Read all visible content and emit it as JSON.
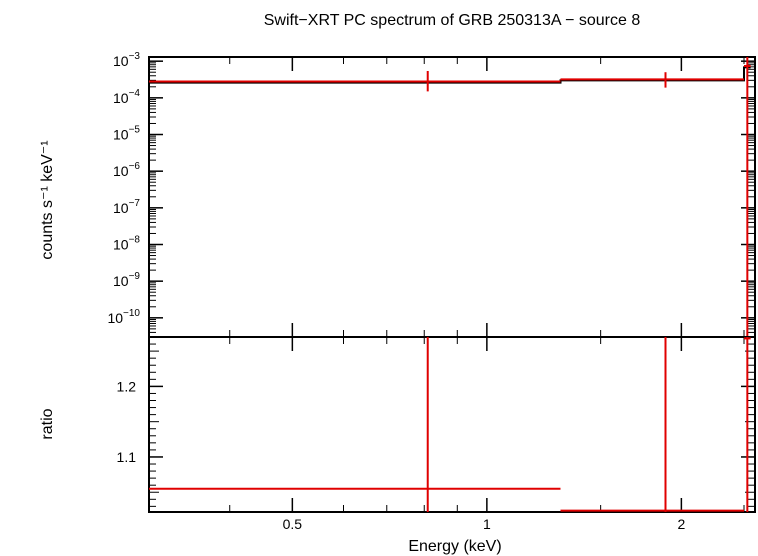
{
  "chart_data": [
    {
      "type": "line",
      "title": "Swift−XRT PC spectrum of GRB 250313A − source 8",
      "ylabel": "counts s⁻¹ keV⁻¹",
      "y_scale": "log",
      "ylim": [
        3e-11,
        0.0013
      ],
      "x_scale": "log",
      "xlim": [
        0.3,
        2.6
      ],
      "y_ticks": [
        {
          "mant": "10",
          "exp": "−3",
          "value": 0.001
        },
        {
          "mant": "10",
          "exp": "−4",
          "value": 0.0001
        },
        {
          "mant": "10",
          "exp": "−5",
          "value": 1e-05
        },
        {
          "mant": "10",
          "exp": "−6",
          "value": 1e-06
        },
        {
          "mant": "10",
          "exp": "−7",
          "value": 1e-07
        },
        {
          "mant": "10",
          "exp": "−8",
          "value": 1e-08
        },
        {
          "mant": "10",
          "exp": "−9",
          "value": 1e-09
        },
        {
          "mant": "10",
          "exp": "−10",
          "value": 1e-10
        }
      ],
      "series": [
        {
          "kind": "data",
          "color": "#e00000",
          "points": [
            {
              "x": 0.81,
              "xlo": 0.3,
              "xhi": 1.3,
              "y": 0.00028,
              "ylo": 0.00015,
              "yhi": 0.00054
            },
            {
              "x": 1.89,
              "xlo": 1.3,
              "xhi": 2.5,
              "y": 0.00032,
              "ylo": 0.00019,
              "yhi": 0.0005
            },
            {
              "x": 2.53,
              "xlo": 2.5,
              "xhi": 2.56,
              "y": 0.00074,
              "ylo": 3e-11,
              "yhi": 0.0013
            }
          ]
        },
        {
          "kind": "model",
          "color": "#000000",
          "steps": [
            {
              "xlo": 0.3,
              "xhi": 1.3,
              "y": 0.00026
            },
            {
              "xlo": 1.3,
              "xhi": 2.5,
              "y": 0.0003
            },
            {
              "xlo": 2.5,
              "xhi": 2.56,
              "y": 0.00068
            }
          ]
        }
      ]
    },
    {
      "type": "line",
      "ylabel": "ratio",
      "xlabel": "Energy (keV)",
      "x_scale": "log",
      "xlim": [
        0.3,
        2.6
      ],
      "ylim": [
        1.022,
        1.27
      ],
      "y_ticks": [
        {
          "label": "1.1",
          "value": 1.1
        },
        {
          "label": "1.2",
          "value": 1.2
        }
      ],
      "x_ticks": [
        {
          "label": "0.5",
          "value": 0.5
        },
        {
          "label": "1",
          "value": 1
        },
        {
          "label": "2",
          "value": 2
        }
      ],
      "series": [
        {
          "kind": "ratio",
          "color": "#e00000",
          "points": [
            {
              "x": 0.81,
              "xlo": 0.3,
              "xhi": 1.3,
              "y": 1.055,
              "ylo": 1.0,
              "yhi": 1.4
            },
            {
              "x": 1.89,
              "xlo": 1.3,
              "xhi": 2.5,
              "y": 1.024,
              "ylo": 1.0,
              "yhi": 1.4
            },
            {
              "x": 2.53,
              "xlo": 2.5,
              "xhi": 2.56,
              "y": 1.268,
              "ylo": 1.0,
              "yhi": 1.4
            }
          ]
        }
      ]
    }
  ]
}
